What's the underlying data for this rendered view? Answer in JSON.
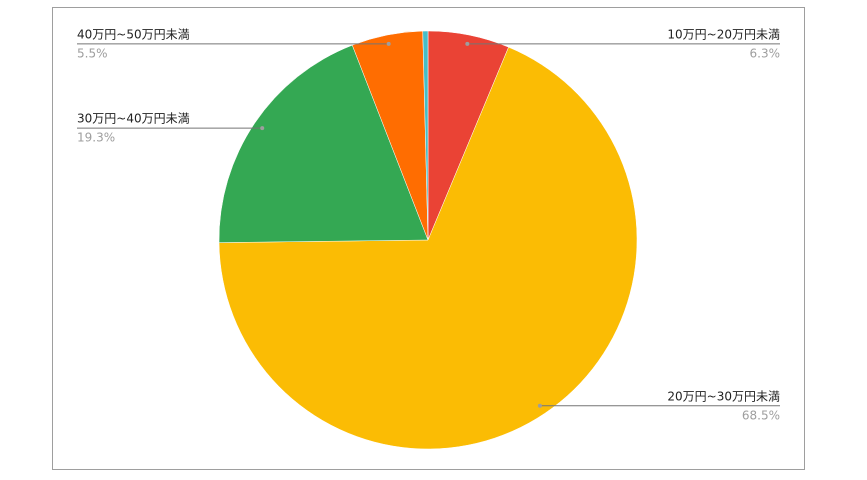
{
  "chart_data": {
    "type": "pie",
    "categories": [
      "10万円~20万円未満",
      "20万円~30万円未満",
      "30万円~40万円未満",
      "40万円~50万円未満",
      null
    ],
    "values": [
      6.3,
      68.5,
      19.3,
      5.5,
      0.4
    ],
    "value_labels": [
      "6.3%",
      "68.5%",
      "19.3%",
      "5.5%",
      null
    ],
    "colors": [
      "#ea4335",
      "#fbbc04",
      "#34a853",
      "#ff6d01",
      "#46bdc6"
    ]
  }
}
